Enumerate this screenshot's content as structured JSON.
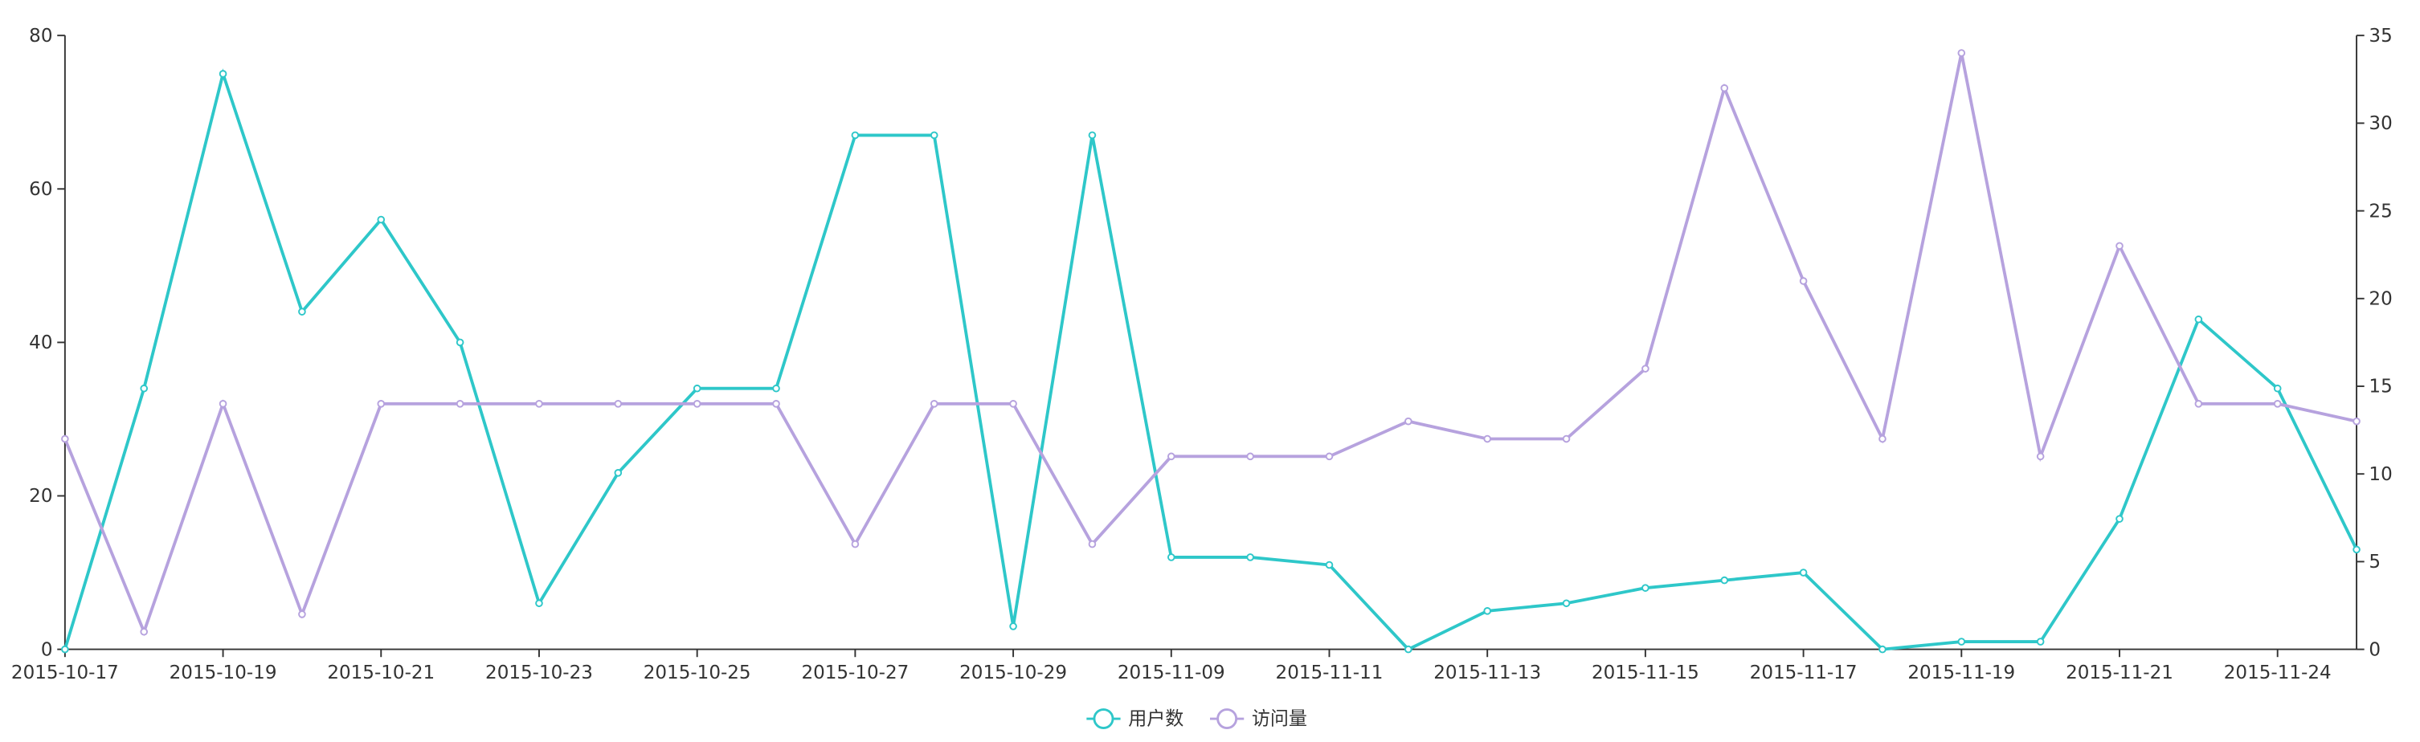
{
  "chart_data": {
    "type": "line",
    "categories": [
      "2015-10-17",
      null,
      "2015-10-19",
      null,
      "2015-10-21",
      null,
      "2015-10-23",
      null,
      "2015-10-25",
      null,
      "2015-10-27",
      null,
      "2015-10-29",
      null,
      "2015-11-09",
      null,
      "2015-11-11",
      null,
      "2015-11-13",
      null,
      "2015-11-15",
      null,
      "2015-11-17",
      null,
      "2015-11-19",
      null,
      "2015-11-21",
      null,
      "2015-11-24",
      null
    ],
    "series": [
      {
        "name": "用户数",
        "color": "#2ec7c9",
        "values": [
          0,
          34,
          75,
          44,
          56,
          40,
          6,
          23,
          34,
          34,
          67,
          67,
          3,
          67,
          12,
          12,
          11,
          0,
          5,
          6,
          8,
          9,
          10,
          0,
          1,
          1,
          17,
          43,
          34,
          13
        ]
      },
      {
        "name": "访问量",
        "color": "#b6a2de",
        "axis": "y2",
        "values": [
          12,
          1,
          14,
          2,
          14,
          14,
          14,
          14,
          14,
          14,
          6,
          14,
          14,
          6,
          11,
          11,
          11,
          13,
          12,
          12,
          16,
          32,
          21,
          12,
          34,
          11,
          23,
          14,
          14,
          13
        ]
      }
    ],
    "ylim": [
      0,
      80
    ],
    "yticks": [
      0,
      20,
      40,
      60,
      80
    ],
    "y2lim": [
      0,
      35
    ],
    "y2ticks": [
      0,
      5,
      10,
      15,
      20,
      25,
      30,
      35
    ],
    "legend": "bottom"
  }
}
